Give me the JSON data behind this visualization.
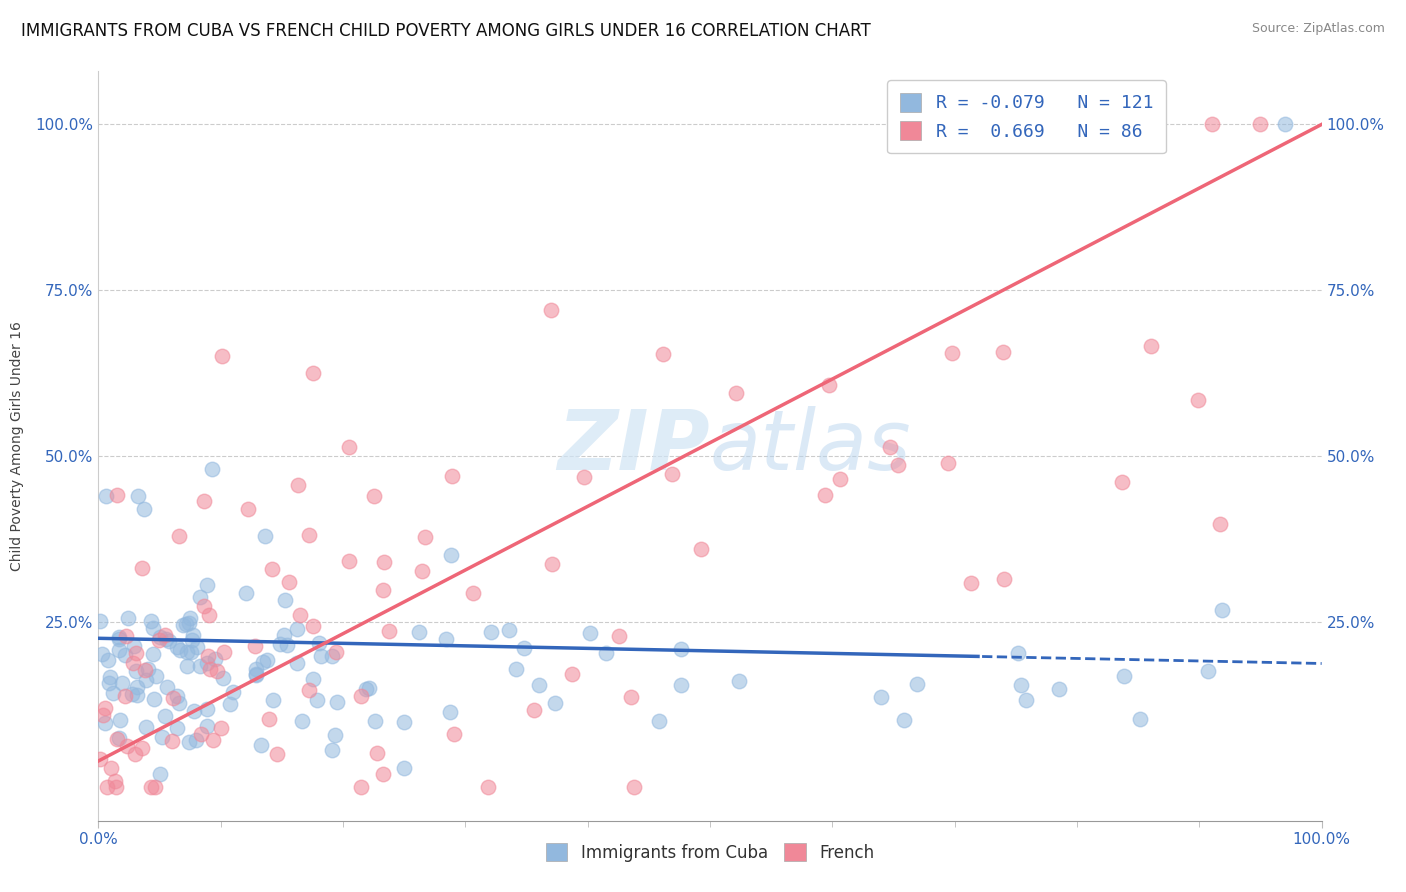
{
  "title": "IMMIGRANTS FROM CUBA VS FRENCH CHILD POVERTY AMONG GIRLS UNDER 16 CORRELATION CHART",
  "source": "Source: ZipAtlas.com",
  "ylabel": "Child Poverty Among Girls Under 16",
  "xlim": [
    0.0,
    1.0
  ],
  "ylim": [
    -0.05,
    1.08
  ],
  "x_tick_labels": [
    "0.0%",
    "100.0%"
  ],
  "y_tick_labels_left": [
    "25.0%",
    "50.0%",
    "75.0%",
    "100.0%"
  ],
  "y_tick_labels_right": [
    "25.0%",
    "50.0%",
    "75.0%",
    "100.0%"
  ],
  "y_tick_positions": [
    0.25,
    0.5,
    0.75,
    1.0
  ],
  "cuba_R": -0.079,
  "cuba_N": 121,
  "french_R": 0.669,
  "french_N": 86,
  "cuba_color": "#92b8de",
  "french_color": "#f08898",
  "cuba_line_color": "#3366bb",
  "french_line_color": "#ee6677",
  "watermark_color": "#d0e4f4",
  "background_color": "#ffffff",
  "title_fontsize": 12,
  "axis_label_fontsize": 10,
  "tick_fontsize": 11,
  "legend_fontsize": 13
}
